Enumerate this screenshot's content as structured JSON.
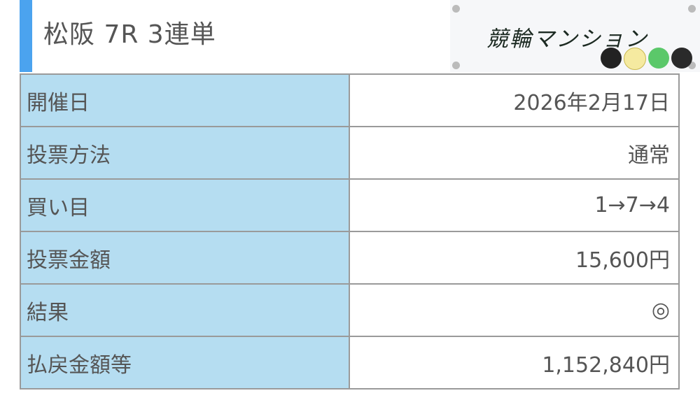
{
  "header": {
    "title": "松阪 7R 3連単"
  },
  "logo": {
    "text": "競輪マンション"
  },
  "rows": [
    {
      "label": "開催日",
      "value": "2026年2月17日"
    },
    {
      "label": "投票方法",
      "value": "通常"
    },
    {
      "label": "買い目",
      "value": "1→7→4"
    },
    {
      "label": "投票金額",
      "value": "15,600円"
    },
    {
      "label": "結果",
      "value": "◎"
    },
    {
      "label": "払戻金額等",
      "value": "1,152,840円"
    }
  ],
  "colors": {
    "accent": "#4ba3ef",
    "label_bg": "#b5ddf1"
  }
}
